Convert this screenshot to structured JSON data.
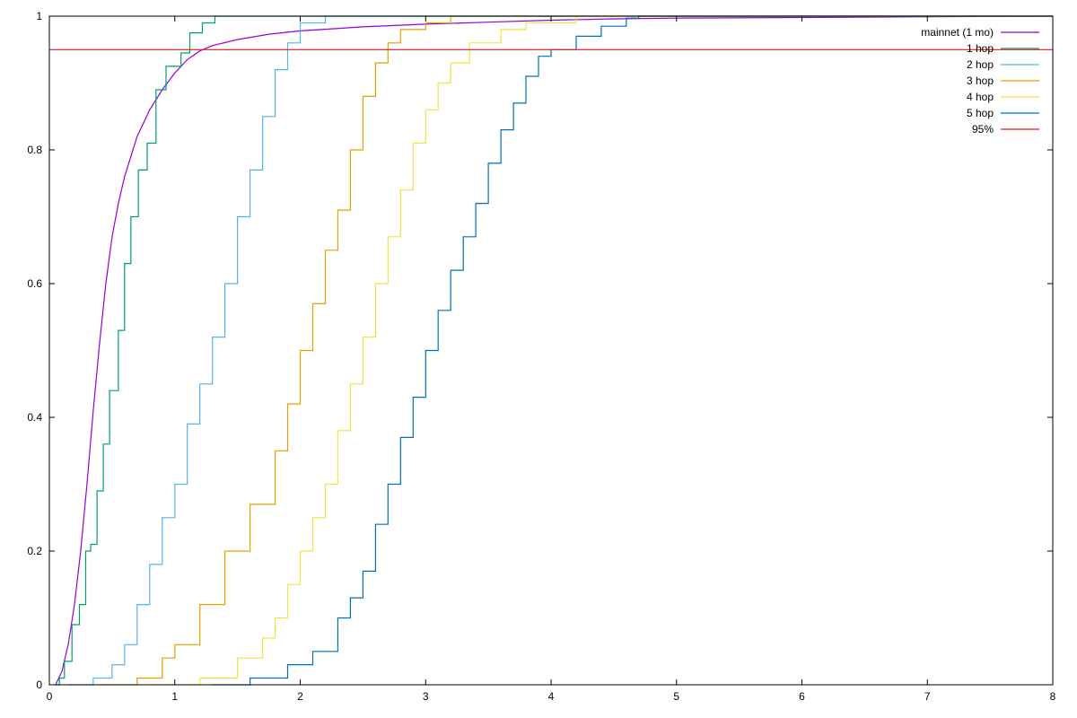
{
  "chart_data": {
    "type": "line",
    "title": "",
    "xlabel": "",
    "ylabel": "",
    "xlim": [
      0,
      8
    ],
    "ylim": [
      0,
      1
    ],
    "x_ticks": [
      0,
      1,
      2,
      3,
      4,
      5,
      6,
      7,
      8
    ],
    "x_tick_labels": [
      "0",
      "1",
      "2",
      "3",
      "4",
      "5",
      "6",
      "7",
      "8"
    ],
    "y_ticks": [
      0,
      0.2,
      0.4,
      0.6,
      0.8,
      1
    ],
    "y_tick_labels": [
      "0",
      "0.2",
      "0.4",
      "0.6",
      "0.8",
      "1"
    ],
    "grid": false,
    "legend_position": "top-right",
    "series": [
      {
        "name": "mainnet (1 mo)",
        "color": "#9400d3",
        "step": false,
        "points": [
          [
            0.05,
            0
          ],
          [
            0.1,
            0.02
          ],
          [
            0.15,
            0.06
          ],
          [
            0.2,
            0.12
          ],
          [
            0.25,
            0.2
          ],
          [
            0.3,
            0.3
          ],
          [
            0.35,
            0.41
          ],
          [
            0.4,
            0.51
          ],
          [
            0.45,
            0.6
          ],
          [
            0.5,
            0.67
          ],
          [
            0.55,
            0.72
          ],
          [
            0.6,
            0.76
          ],
          [
            0.7,
            0.82
          ],
          [
            0.8,
            0.86
          ],
          [
            0.9,
            0.89
          ],
          [
            1.0,
            0.915
          ],
          [
            1.1,
            0.935
          ],
          [
            1.2,
            0.948
          ],
          [
            1.3,
            0.956
          ],
          [
            1.5,
            0.965
          ],
          [
            1.75,
            0.973
          ],
          [
            2.0,
            0.978
          ],
          [
            2.5,
            0.984
          ],
          [
            3.0,
            0.988
          ],
          [
            3.5,
            0.991
          ],
          [
            4.0,
            0.994
          ],
          [
            4.5,
            0.996
          ],
          [
            5.0,
            0.997
          ],
          [
            6.0,
            0.998
          ],
          [
            7.0,
            0.999
          ],
          [
            8.0,
            1.0
          ]
        ]
      },
      {
        "name": "1 hop",
        "color": "#009e73",
        "step": true,
        "points": [
          [
            0.05,
            0
          ],
          [
            0.08,
            0.01
          ],
          [
            0.12,
            0.035
          ],
          [
            0.18,
            0.09
          ],
          [
            0.24,
            0.12
          ],
          [
            0.29,
            0.2
          ],
          [
            0.33,
            0.21
          ],
          [
            0.38,
            0.29
          ],
          [
            0.43,
            0.36
          ],
          [
            0.48,
            0.44
          ],
          [
            0.55,
            0.53
          ],
          [
            0.6,
            0.63
          ],
          [
            0.65,
            0.7
          ],
          [
            0.71,
            0.77
          ],
          [
            0.78,
            0.81
          ],
          [
            0.85,
            0.89
          ],
          [
            0.93,
            0.925
          ],
          [
            1.05,
            0.945
          ],
          [
            1.12,
            0.975
          ],
          [
            1.22,
            0.99
          ],
          [
            1.32,
            1.0
          ],
          [
            8.0,
            1.0
          ]
        ]
      },
      {
        "name": "2 hop",
        "color": "#56b4e9",
        "step": true,
        "points": [
          [
            0.15,
            0
          ],
          [
            0.35,
            0.01
          ],
          [
            0.5,
            0.03
          ],
          [
            0.6,
            0.06
          ],
          [
            0.7,
            0.12
          ],
          [
            0.8,
            0.18
          ],
          [
            0.9,
            0.25
          ],
          [
            1.0,
            0.3
          ],
          [
            1.1,
            0.39
          ],
          [
            1.2,
            0.45
          ],
          [
            1.3,
            0.52
          ],
          [
            1.4,
            0.6
          ],
          [
            1.5,
            0.7
          ],
          [
            1.6,
            0.77
          ],
          [
            1.7,
            0.85
          ],
          [
            1.8,
            0.92
          ],
          [
            1.9,
            0.96
          ],
          [
            2.0,
            0.99
          ],
          [
            2.2,
            1.0
          ],
          [
            8.0,
            1.0
          ]
        ]
      },
      {
        "name": "3 hop",
        "color": "#e69f00",
        "step": true,
        "points": [
          [
            0.4,
            0
          ],
          [
            0.7,
            0.01
          ],
          [
            0.9,
            0.04
          ],
          [
            1.0,
            0.06
          ],
          [
            1.2,
            0.12
          ],
          [
            1.4,
            0.2
          ],
          [
            1.6,
            0.27
          ],
          [
            1.8,
            0.35
          ],
          [
            1.9,
            0.42
          ],
          [
            2.0,
            0.5
          ],
          [
            2.1,
            0.57
          ],
          [
            2.2,
            0.65
          ],
          [
            2.3,
            0.71
          ],
          [
            2.4,
            0.8
          ],
          [
            2.5,
            0.88
          ],
          [
            2.6,
            0.93
          ],
          [
            2.7,
            0.96
          ],
          [
            2.8,
            0.98
          ],
          [
            3.0,
            0.99
          ],
          [
            3.2,
            1.0
          ],
          [
            8.0,
            1.0
          ]
        ]
      },
      {
        "name": "4 hop",
        "color": "#f0e442",
        "step": true,
        "points": [
          [
            0.8,
            0
          ],
          [
            1.2,
            0.01
          ],
          [
            1.5,
            0.04
          ],
          [
            1.7,
            0.07
          ],
          [
            1.8,
            0.1
          ],
          [
            1.9,
            0.15
          ],
          [
            2.0,
            0.2
          ],
          [
            2.1,
            0.25
          ],
          [
            2.2,
            0.3
          ],
          [
            2.3,
            0.38
          ],
          [
            2.4,
            0.45
          ],
          [
            2.5,
            0.52
          ],
          [
            2.6,
            0.6
          ],
          [
            2.7,
            0.67
          ],
          [
            2.8,
            0.74
          ],
          [
            2.9,
            0.81
          ],
          [
            3.0,
            0.86
          ],
          [
            3.1,
            0.9
          ],
          [
            3.2,
            0.93
          ],
          [
            3.35,
            0.96
          ],
          [
            3.6,
            0.98
          ],
          [
            3.8,
            0.99
          ],
          [
            4.2,
            1.0
          ],
          [
            8.0,
            1.0
          ]
        ]
      },
      {
        "name": "5 hop",
        "color": "#0072b2",
        "step": true,
        "points": [
          [
            1.3,
            0
          ],
          [
            1.6,
            0.01
          ],
          [
            1.9,
            0.03
          ],
          [
            2.1,
            0.05
          ],
          [
            2.3,
            0.1
          ],
          [
            2.4,
            0.13
          ],
          [
            2.5,
            0.17
          ],
          [
            2.6,
            0.24
          ],
          [
            2.7,
            0.3
          ],
          [
            2.8,
            0.37
          ],
          [
            2.9,
            0.43
          ],
          [
            3.0,
            0.5
          ],
          [
            3.1,
            0.56
          ],
          [
            3.2,
            0.62
          ],
          [
            3.3,
            0.67
          ],
          [
            3.4,
            0.72
          ],
          [
            3.5,
            0.78
          ],
          [
            3.6,
            0.83
          ],
          [
            3.7,
            0.87
          ],
          [
            3.8,
            0.91
          ],
          [
            3.9,
            0.94
          ],
          [
            4.0,
            0.95
          ],
          [
            4.2,
            0.97
          ],
          [
            4.4,
            0.985
          ],
          [
            4.6,
            0.997
          ],
          [
            4.7,
            1.0
          ],
          [
            8.0,
            1.0
          ]
        ]
      },
      {
        "name": "95%",
        "color": "#e41a1c",
        "step": false,
        "points": [
          [
            0,
            0.95
          ],
          [
            8,
            0.95
          ]
        ]
      }
    ]
  }
}
